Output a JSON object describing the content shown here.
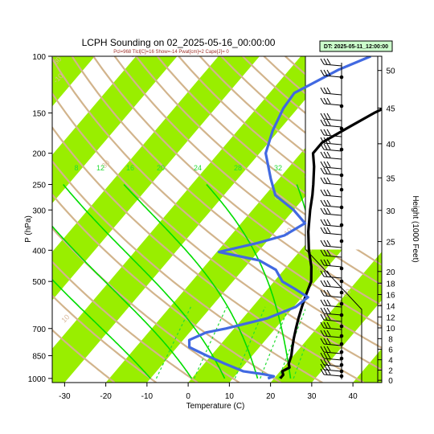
{
  "chart_data": {
    "type": "skew-t",
    "title": "LCPH Sounding on 02_2025-05-16_00:00:00",
    "subtitle": "Pcl=968 Tlcl[C]=16 Show=-14 Pwat[cm]=2 Cape[J]= 0",
    "dt_label": "DT: 2025-05-11_12:00:00",
    "xlabel": "Temperature (C)",
    "ylabel": "P (hPa)",
    "y2label": "Height (1000 Feet)",
    "xlim": [
      -33,
      47
    ],
    "ylim": [
      1030,
      100
    ],
    "x_ticks": [
      -30,
      -20,
      -10,
      0,
      10,
      20,
      30,
      40
    ],
    "p_ticks": [
      100,
      150,
      200,
      250,
      300,
      400,
      500,
      700,
      850,
      1000
    ],
    "height_ticks": [
      0,
      2,
      4,
      6,
      8,
      10,
      12,
      14,
      16,
      18,
      20,
      25,
      30,
      35,
      40,
      45,
      50
    ],
    "mixing_ratio_labels": [
      "8",
      "12",
      "16",
      "20",
      "24",
      "28",
      "32"
    ],
    "dry_adiabat_labels": [
      "-30",
      "-10",
      "10",
      "30",
      "50",
      "0",
      "-10",
      "10",
      "30",
      "50",
      "100",
      "150",
      "160",
      "80"
    ],
    "colors": {
      "temperature": "#000000",
      "dewpoint": "#4169e1",
      "isotherm_band": "#99ee00",
      "dry_adiabat": "#d2b48c",
      "mixing_ratio": "#22dd33",
      "moist_adiabat": "#00dd00"
    },
    "series": [
      {
        "role": "temperature",
        "points": [
          [
            1000,
            21.5
          ],
          [
            975,
            21.5
          ],
          [
            950,
            20.5
          ],
          [
            925,
            21.5
          ],
          [
            900,
            20.5
          ],
          [
            850,
            19.5
          ],
          [
            800,
            18.0
          ],
          [
            750,
            16.5
          ],
          [
            700,
            15.0
          ],
          [
            650,
            13.5
          ],
          [
            600,
            12.0
          ],
          [
            550,
            10.5
          ],
          [
            500,
            9.0
          ],
          [
            450,
            6.0
          ],
          [
            400,
            2.0
          ],
          [
            350,
            -2.0
          ],
          [
            300,
            -6.0
          ],
          [
            270,
            -8.5
          ],
          [
            250,
            -10.5
          ],
          [
            220,
            -14.0
          ],
          [
            200,
            -17.0
          ],
          [
            185,
            -17.0
          ],
          [
            165,
            -13.5
          ],
          [
            150,
            -10.5
          ],
          [
            130,
            -4.5
          ],
          [
            115,
            2.0
          ],
          [
            105,
            6.0
          ],
          [
            100,
            8.0
          ]
        ]
      },
      {
        "role": "dewpoint",
        "points": [
          [
            1000,
            18.5
          ],
          [
            985,
            19.5
          ],
          [
            970,
            16.5
          ],
          [
            950,
            11.0
          ],
          [
            900,
            5.0
          ],
          [
            850,
            -1.0
          ],
          [
            800,
            -7.0
          ],
          [
            760,
            -8.5
          ],
          [
            720,
            -6.0
          ],
          [
            700,
            -2.0
          ],
          [
            650,
            6.0
          ],
          [
            600,
            10.5
          ],
          [
            560,
            11.5
          ],
          [
            530,
            7.0
          ],
          [
            500,
            2.0
          ],
          [
            460,
            -2.0
          ],
          [
            430,
            -8.0
          ],
          [
            405,
            -19.5
          ],
          [
            380,
            -12.0
          ],
          [
            360,
            -7.0
          ],
          [
            330,
            -4.5
          ],
          [
            300,
            -10.0
          ],
          [
            270,
            -17.5
          ],
          [
            240,
            -22.0
          ],
          [
            200,
            -28.5
          ],
          [
            170,
            -31.5
          ],
          [
            145,
            -33.5
          ],
          [
            130,
            -34.0
          ],
          [
            110,
            -28.0
          ],
          [
            100,
            -23.0
          ]
        ]
      }
    ]
  }
}
